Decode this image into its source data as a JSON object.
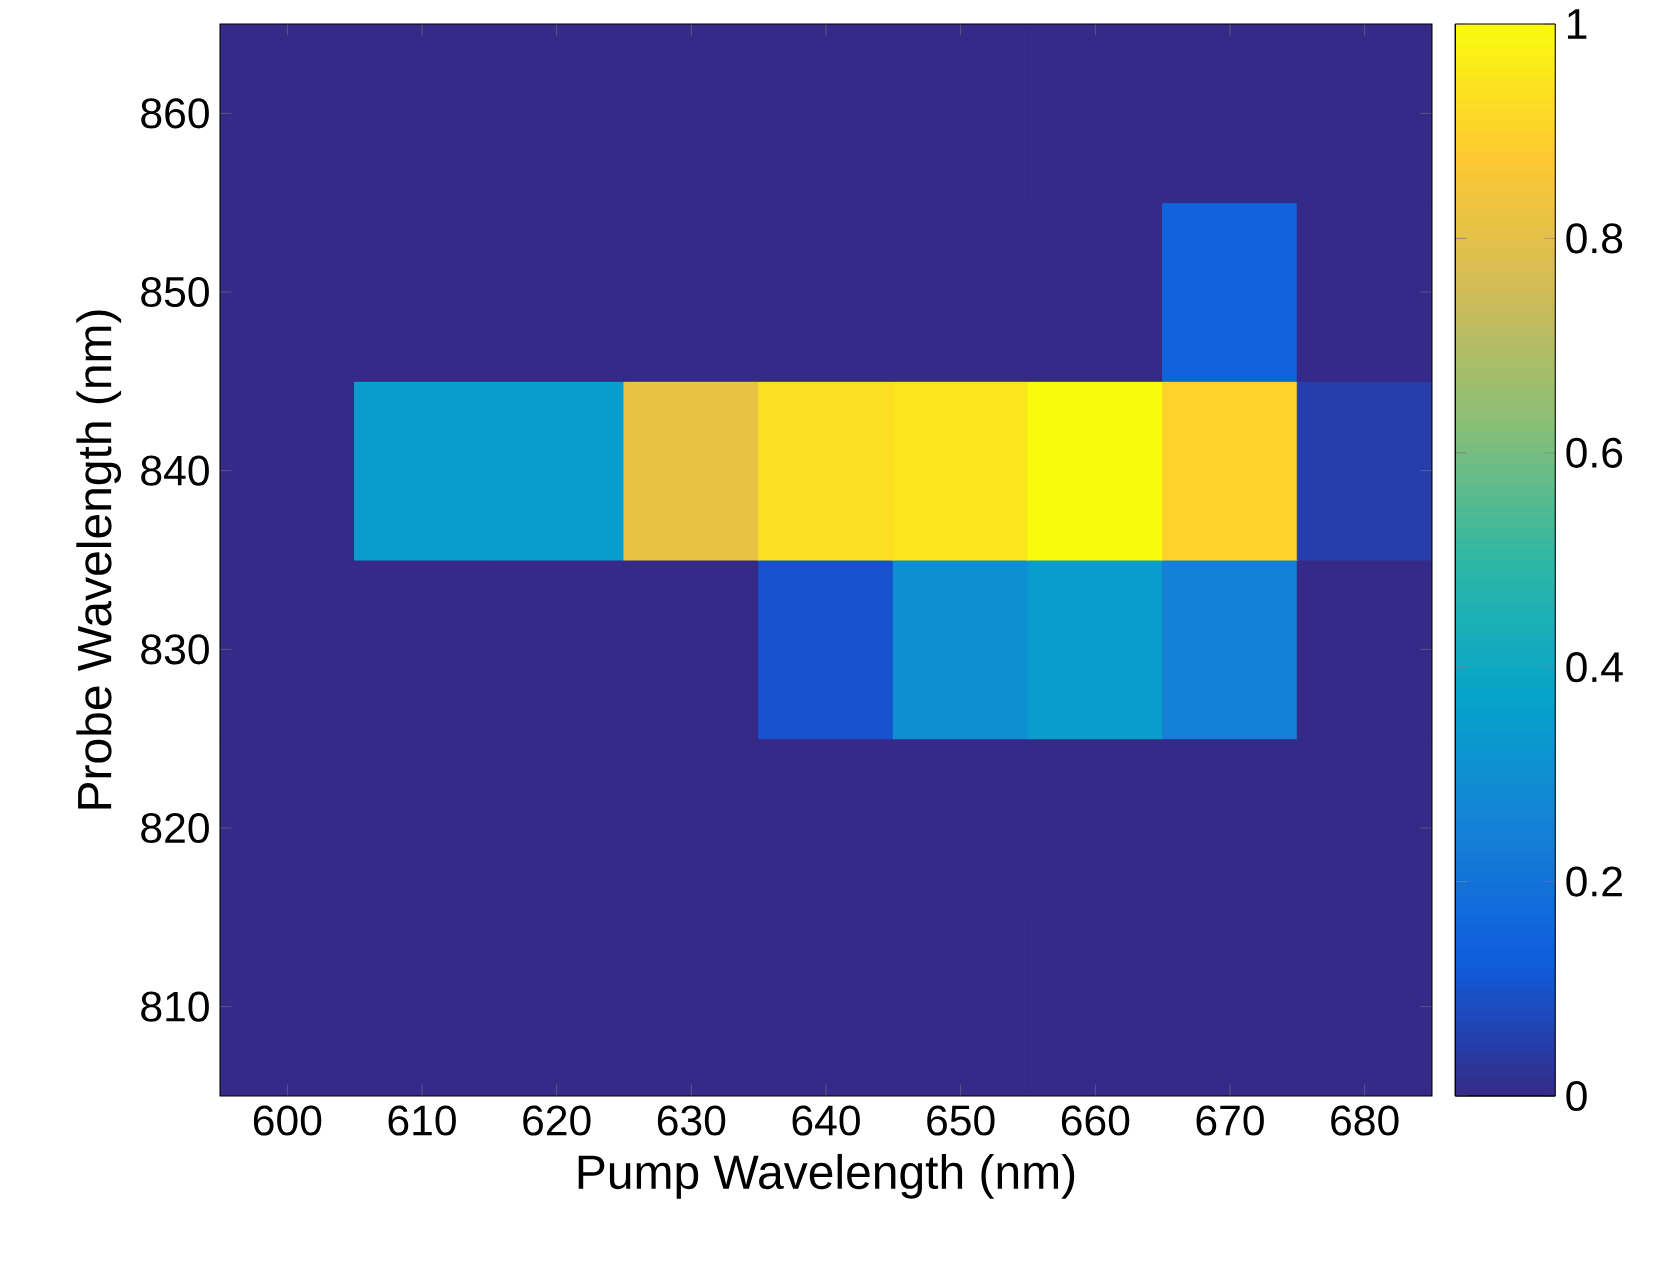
{
  "chart_data": {
    "type": "heatmap",
    "xlabel": "Pump Wavelength (nm)",
    "ylabel": "Probe Wavelength (nm)",
    "categories": [
      "600",
      "610",
      "620",
      "630",
      "640",
      "650",
      "660",
      "670",
      "680"
    ],
    "y_categories": [
      "860",
      "850",
      "840",
      "830",
      "820",
      "810"
    ],
    "cells": [
      [
        0,
        0,
        0,
        0,
        0,
        0,
        0,
        0,
        0
      ],
      [
        0,
        0,
        0,
        0,
        0,
        0,
        0,
        0.15,
        0
      ],
      [
        0,
        0.35,
        0.35,
        0.82,
        0.93,
        0.95,
        1,
        0.9,
        0.05
      ],
      [
        0,
        0,
        0,
        0,
        0.1,
        0.3,
        0.35,
        0.25,
        0
      ],
      [
        0,
        0,
        0,
        0,
        0,
        0,
        0,
        0,
        0
      ],
      [
        0,
        0,
        0,
        0,
        0,
        0,
        0,
        0,
        0
      ]
    ],
    "clim": [
      0,
      1
    ],
    "cticks": [
      0,
      0.2,
      0.4,
      0.6,
      0.8,
      1
    ]
  }
}
